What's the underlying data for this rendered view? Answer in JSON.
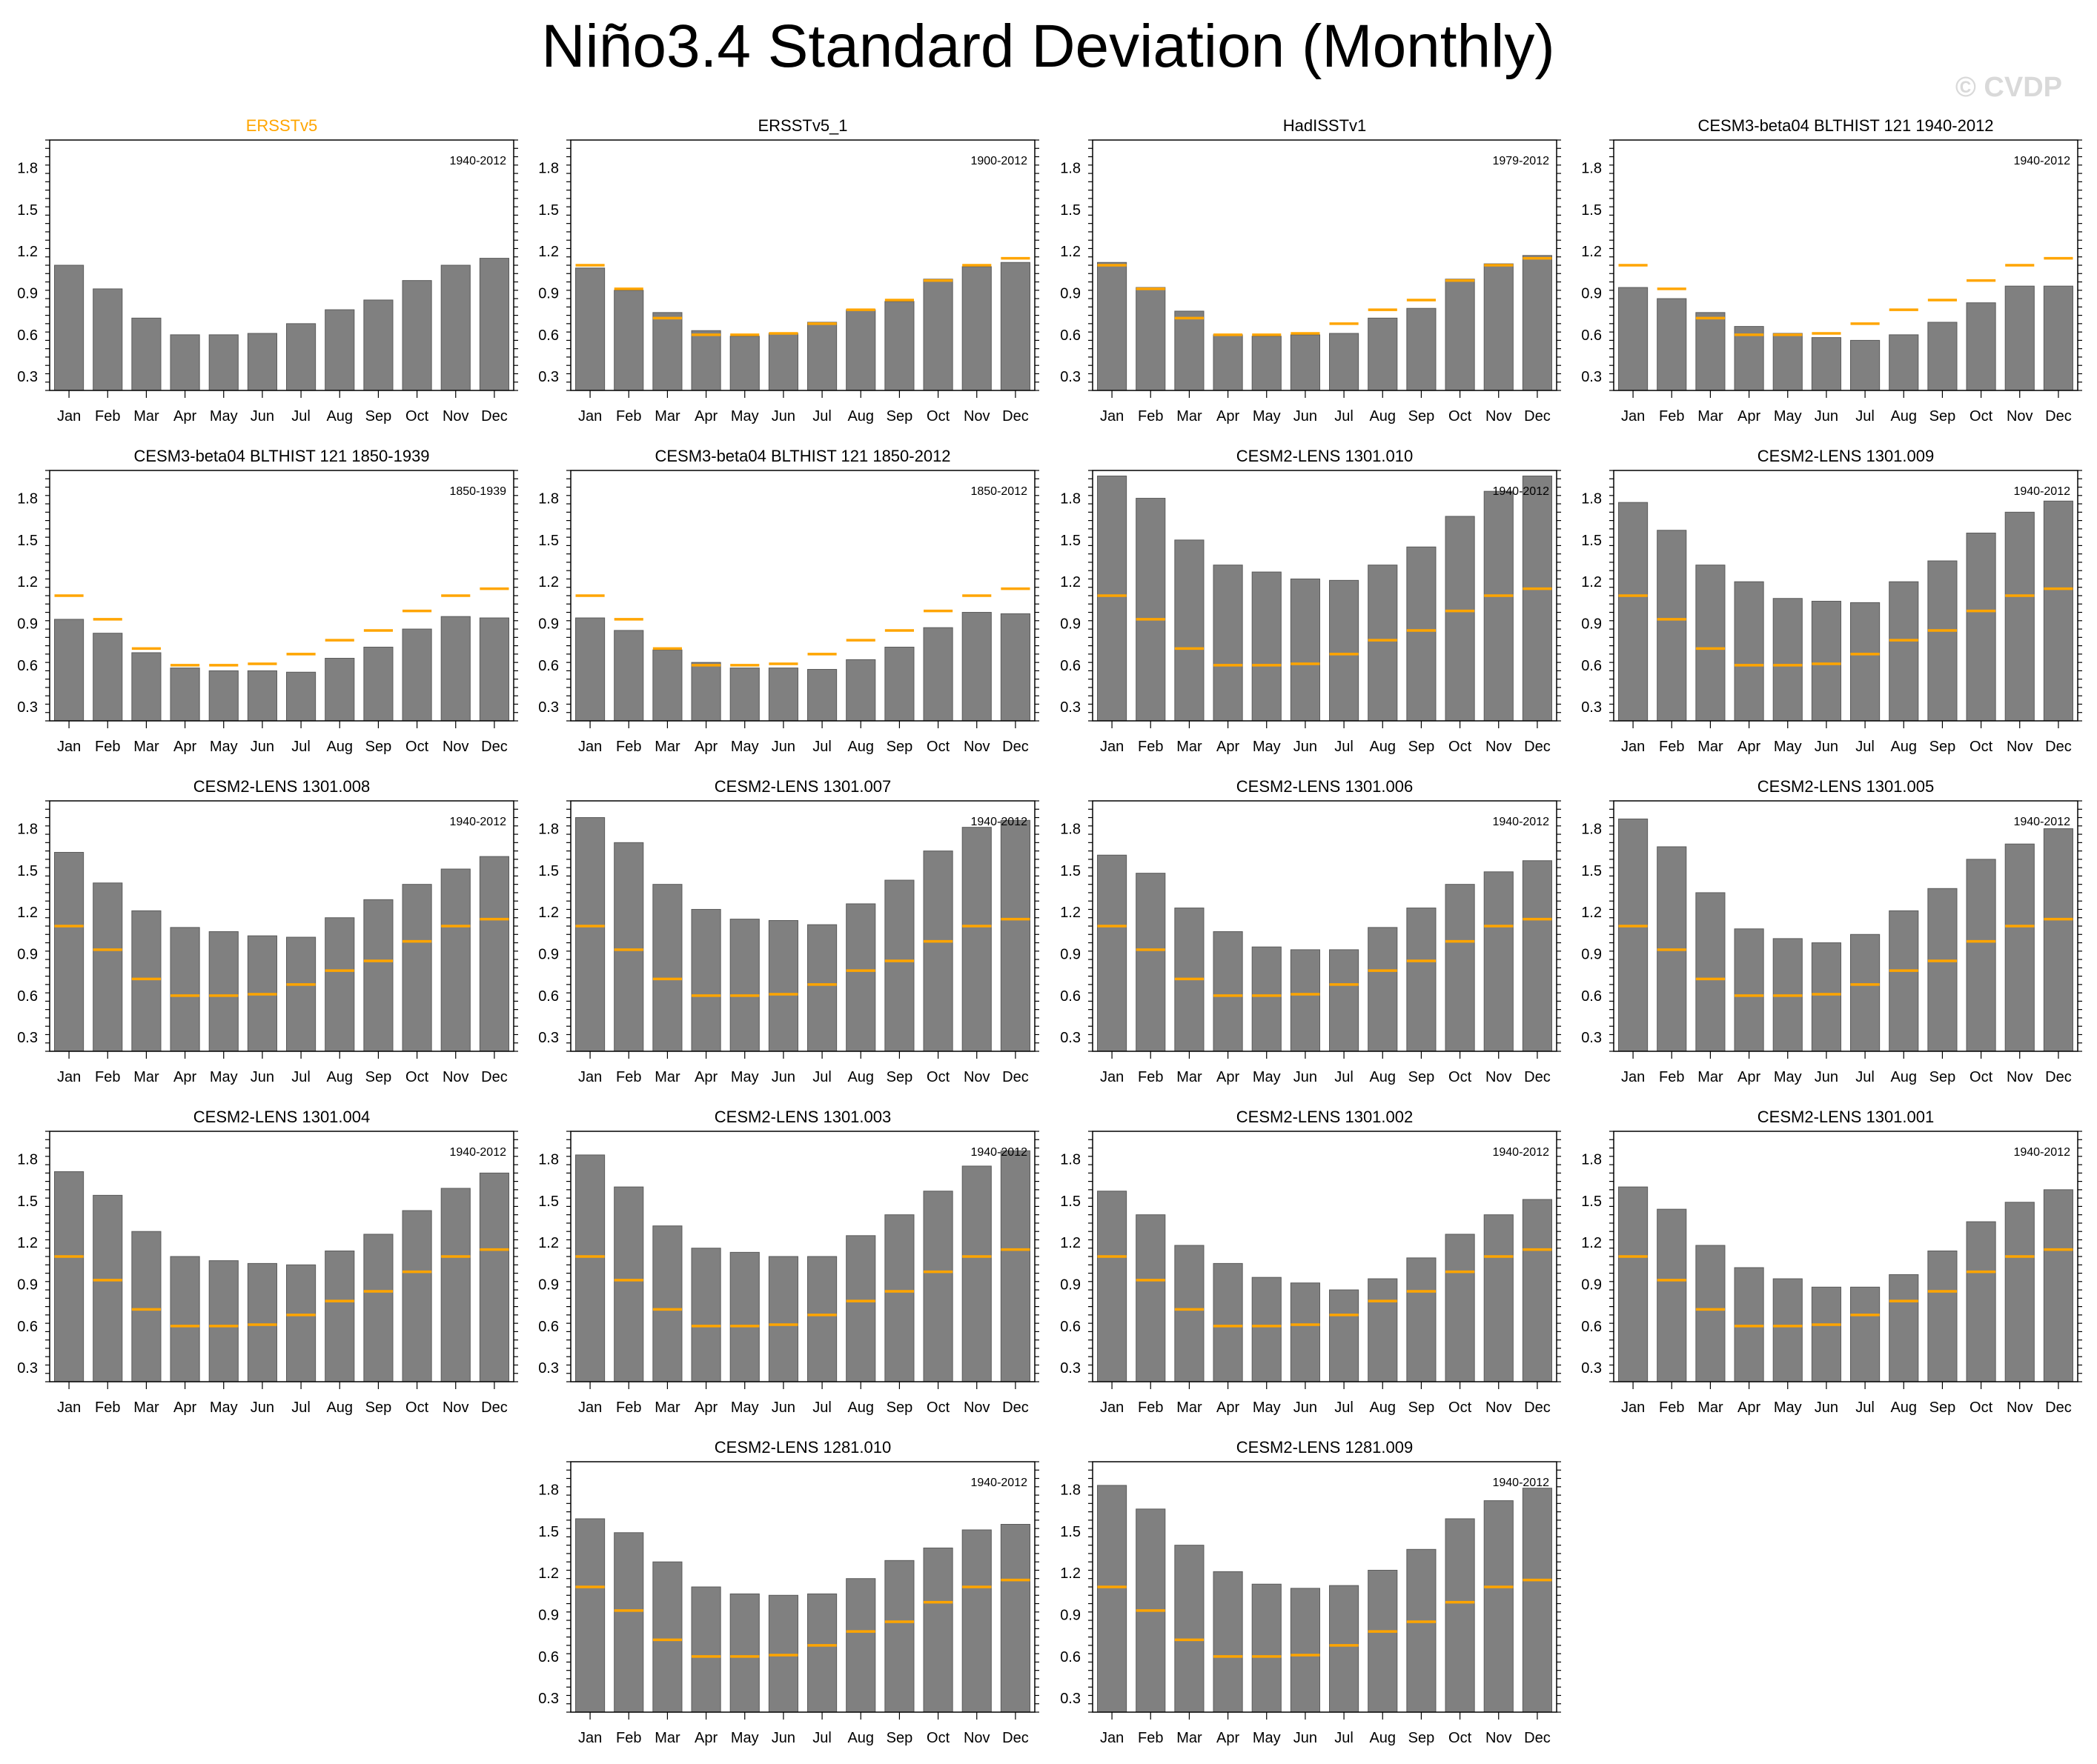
{
  "figure": {
    "title": "Niño3.4 Standard Deviation (Monthly)",
    "watermark": "© CVDP"
  },
  "colors": {
    "bar": "#808080",
    "reference": "#ffa500",
    "title_highlight": "#ffa500",
    "axis": "#000000",
    "watermark": "#d9d9d9"
  },
  "chart_data": [
    {
      "type": "bar",
      "title": "ERSSTv5",
      "period": "1940-2012",
      "is_reference": true,
      "categories": [
        "Jan",
        "Feb",
        "Mar",
        "Apr",
        "May",
        "Jun",
        "Jul",
        "Aug",
        "Sep",
        "Oct",
        "Nov",
        "Dec"
      ],
      "values": [
        1.1,
        0.93,
        0.72,
        0.6,
        0.6,
        0.61,
        0.68,
        0.78,
        0.85,
        0.99,
        1.1,
        1.15
      ],
      "reference": [],
      "ylim": [
        0.2,
        2.0
      ],
      "yticks": [
        "0.3",
        "0.6",
        "0.9",
        "1.2",
        "1.5",
        "1.8"
      ]
    },
    {
      "type": "bar",
      "title": "ERSSTv5_1",
      "period": "1900-2012",
      "categories": [
        "Jan",
        "Feb",
        "Mar",
        "Apr",
        "May",
        "Jun",
        "Jul",
        "Aug",
        "Sep",
        "Oct",
        "Nov",
        "Dec"
      ],
      "values": [
        1.08,
        0.92,
        0.76,
        0.63,
        0.59,
        0.61,
        0.69,
        0.78,
        0.84,
        1.0,
        1.09,
        1.12
      ],
      "reference": [
        1.1,
        0.93,
        0.72,
        0.6,
        0.6,
        0.61,
        0.68,
        0.78,
        0.85,
        0.99,
        1.1,
        1.15
      ],
      "ylim": [
        0.2,
        2.0
      ],
      "yticks": [
        "0.3",
        "0.6",
        "0.9",
        "1.2",
        "1.5",
        "1.8"
      ]
    },
    {
      "type": "bar",
      "title": "HadISSTv1",
      "period": "1979-2012",
      "categories": [
        "Jan",
        "Feb",
        "Mar",
        "Apr",
        "May",
        "Jun",
        "Jul",
        "Aug",
        "Sep",
        "Oct",
        "Nov",
        "Dec"
      ],
      "values": [
        1.12,
        0.94,
        0.77,
        0.6,
        0.59,
        0.6,
        0.61,
        0.72,
        0.79,
        1.0,
        1.11,
        1.17
      ],
      "reference": [
        1.1,
        0.93,
        0.72,
        0.6,
        0.6,
        0.61,
        0.68,
        0.78,
        0.85,
        0.99,
        1.1,
        1.15
      ],
      "ylim": [
        0.2,
        2.0
      ],
      "yticks": [
        "0.3",
        "0.6",
        "0.9",
        "1.2",
        "1.5",
        "1.8"
      ]
    },
    {
      "type": "bar",
      "title": "CESM3-beta04 BLTHIST 121 1940-2012",
      "period": "1940-2012",
      "categories": [
        "Jan",
        "Feb",
        "Mar",
        "Apr",
        "May",
        "Jun",
        "Jul",
        "Aug",
        "Sep",
        "Oct",
        "Nov",
        "Dec"
      ],
      "values": [
        0.94,
        0.86,
        0.76,
        0.66,
        0.61,
        0.58,
        0.56,
        0.6,
        0.69,
        0.83,
        0.95,
        0.95
      ],
      "reference": [
        1.1,
        0.93,
        0.72,
        0.6,
        0.6,
        0.61,
        0.68,
        0.78,
        0.85,
        0.99,
        1.1,
        1.15
      ],
      "ylim": [
        0.2,
        2.0
      ],
      "yticks": [
        "0.3",
        "0.6",
        "0.9",
        "1.2",
        "1.5",
        "1.8"
      ]
    },
    {
      "type": "bar",
      "title": "CESM3-beta04 BLTHIST 121 1850-1939",
      "period": "1850-1939",
      "categories": [
        "Jan",
        "Feb",
        "Mar",
        "Apr",
        "May",
        "Jun",
        "Jul",
        "Aug",
        "Sep",
        "Oct",
        "Nov",
        "Dec"
      ],
      "values": [
        0.93,
        0.83,
        0.69,
        0.58,
        0.56,
        0.56,
        0.55,
        0.65,
        0.73,
        0.86,
        0.95,
        0.94
      ],
      "reference": [
        1.1,
        0.93,
        0.72,
        0.6,
        0.6,
        0.61,
        0.68,
        0.78,
        0.85,
        0.99,
        1.1,
        1.15
      ],
      "ylim": [
        0.2,
        2.0
      ],
      "yticks": [
        "0.3",
        "0.6",
        "0.9",
        "1.2",
        "1.5",
        "1.8"
      ]
    },
    {
      "type": "bar",
      "title": "CESM3-beta04 BLTHIST 121 1850-2012",
      "period": "1850-2012",
      "categories": [
        "Jan",
        "Feb",
        "Mar",
        "Apr",
        "May",
        "Jun",
        "Jul",
        "Aug",
        "Sep",
        "Oct",
        "Nov",
        "Dec"
      ],
      "values": [
        0.94,
        0.85,
        0.71,
        0.62,
        0.58,
        0.58,
        0.57,
        0.64,
        0.73,
        0.87,
        0.98,
        0.97
      ],
      "reference": [
        1.1,
        0.93,
        0.72,
        0.6,
        0.6,
        0.61,
        0.68,
        0.78,
        0.85,
        0.99,
        1.1,
        1.15
      ],
      "ylim": [
        0.2,
        2.0
      ],
      "yticks": [
        "0.3",
        "0.6",
        "0.9",
        "1.2",
        "1.5",
        "1.8"
      ]
    },
    {
      "type": "bar",
      "title": "CESM2-LENS 1301.010",
      "period": "1940-2012",
      "categories": [
        "Jan",
        "Feb",
        "Mar",
        "Apr",
        "May",
        "Jun",
        "Jul",
        "Aug",
        "Sep",
        "Oct",
        "Nov",
        "Dec"
      ],
      "values": [
        1.96,
        1.8,
        1.5,
        1.32,
        1.27,
        1.22,
        1.21,
        1.32,
        1.45,
        1.67,
        1.85,
        1.96
      ],
      "reference": [
        1.1,
        0.93,
        0.72,
        0.6,
        0.6,
        0.61,
        0.68,
        0.78,
        0.85,
        0.99,
        1.1,
        1.15
      ],
      "ylim": [
        0.2,
        2.0
      ],
      "yticks": [
        "0.3",
        "0.6",
        "0.9",
        "1.2",
        "1.5",
        "1.8"
      ]
    },
    {
      "type": "bar",
      "title": "CESM2-LENS 1301.009",
      "period": "1940-2012",
      "categories": [
        "Jan",
        "Feb",
        "Mar",
        "Apr",
        "May",
        "Jun",
        "Jul",
        "Aug",
        "Sep",
        "Oct",
        "Nov",
        "Dec"
      ],
      "values": [
        1.77,
        1.57,
        1.32,
        1.2,
        1.08,
        1.06,
        1.05,
        1.2,
        1.35,
        1.55,
        1.7,
        1.78
      ],
      "reference": [
        1.1,
        0.93,
        0.72,
        0.6,
        0.6,
        0.61,
        0.68,
        0.78,
        0.85,
        0.99,
        1.1,
        1.15
      ],
      "ylim": [
        0.2,
        2.0
      ],
      "yticks": [
        "0.3",
        "0.6",
        "0.9",
        "1.2",
        "1.5",
        "1.8"
      ]
    },
    {
      "type": "bar",
      "title": "CESM2-LENS 1301.008",
      "period": "1940-2012",
      "categories": [
        "Jan",
        "Feb",
        "Mar",
        "Apr",
        "May",
        "Jun",
        "Jul",
        "Aug",
        "Sep",
        "Oct",
        "Nov",
        "Dec"
      ],
      "values": [
        1.63,
        1.41,
        1.21,
        1.09,
        1.06,
        1.03,
        1.02,
        1.16,
        1.29,
        1.4,
        1.51,
        1.6
      ],
      "reference": [
        1.1,
        0.93,
        0.72,
        0.6,
        0.6,
        0.61,
        0.68,
        0.78,
        0.85,
        0.99,
        1.1,
        1.15
      ],
      "ylim": [
        0.2,
        2.0
      ],
      "yticks": [
        "0.3",
        "0.6",
        "0.9",
        "1.2",
        "1.5",
        "1.8"
      ]
    },
    {
      "type": "bar",
      "title": "CESM2-LENS 1301.007",
      "period": "1940-2012",
      "categories": [
        "Jan",
        "Feb",
        "Mar",
        "Apr",
        "May",
        "Jun",
        "Jul",
        "Aug",
        "Sep",
        "Oct",
        "Nov",
        "Dec"
      ],
      "values": [
        1.88,
        1.7,
        1.4,
        1.22,
        1.15,
        1.14,
        1.11,
        1.26,
        1.43,
        1.64,
        1.81,
        1.86
      ],
      "reference": [
        1.1,
        0.93,
        0.72,
        0.6,
        0.6,
        0.61,
        0.68,
        0.78,
        0.85,
        0.99,
        1.1,
        1.15
      ],
      "ylim": [
        0.2,
        2.0
      ],
      "yticks": [
        "0.3",
        "0.6",
        "0.9",
        "1.2",
        "1.5",
        "1.8"
      ]
    },
    {
      "type": "bar",
      "title": "CESM2-LENS 1301.006",
      "period": "1940-2012",
      "categories": [
        "Jan",
        "Feb",
        "Mar",
        "Apr",
        "May",
        "Jun",
        "Jul",
        "Aug",
        "Sep",
        "Oct",
        "Nov",
        "Dec"
      ],
      "values": [
        1.61,
        1.48,
        1.23,
        1.06,
        0.95,
        0.93,
        0.93,
        1.09,
        1.23,
        1.4,
        1.49,
        1.57
      ],
      "reference": [
        1.1,
        0.93,
        0.72,
        0.6,
        0.6,
        0.61,
        0.68,
        0.78,
        0.85,
        0.99,
        1.1,
        1.15
      ],
      "ylim": [
        0.2,
        2.0
      ],
      "yticks": [
        "0.3",
        "0.6",
        "0.9",
        "1.2",
        "1.5",
        "1.8"
      ]
    },
    {
      "type": "bar",
      "title": "CESM2-LENS 1301.005",
      "period": "1940-2012",
      "categories": [
        "Jan",
        "Feb",
        "Mar",
        "Apr",
        "May",
        "Jun",
        "Jul",
        "Aug",
        "Sep",
        "Oct",
        "Nov",
        "Dec"
      ],
      "values": [
        1.87,
        1.67,
        1.34,
        1.08,
        1.01,
        0.98,
        1.04,
        1.21,
        1.37,
        1.58,
        1.69,
        1.8
      ],
      "reference": [
        1.1,
        0.93,
        0.72,
        0.6,
        0.6,
        0.61,
        0.68,
        0.78,
        0.85,
        0.99,
        1.1,
        1.15
      ],
      "ylim": [
        0.2,
        2.0
      ],
      "yticks": [
        "0.3",
        "0.6",
        "0.9",
        "1.2",
        "1.5",
        "1.8"
      ]
    },
    {
      "type": "bar",
      "title": "CESM2-LENS 1301.004",
      "period": "1940-2012",
      "categories": [
        "Jan",
        "Feb",
        "Mar",
        "Apr",
        "May",
        "Jun",
        "Jul",
        "Aug",
        "Sep",
        "Oct",
        "Nov",
        "Dec"
      ],
      "values": [
        1.71,
        1.54,
        1.28,
        1.1,
        1.07,
        1.05,
        1.04,
        1.14,
        1.26,
        1.43,
        1.59,
        1.7
      ],
      "reference": [
        1.1,
        0.93,
        0.72,
        0.6,
        0.6,
        0.61,
        0.68,
        0.78,
        0.85,
        0.99,
        1.1,
        1.15
      ],
      "ylim": [
        0.2,
        2.0
      ],
      "yticks": [
        "0.3",
        "0.6",
        "0.9",
        "1.2",
        "1.5",
        "1.8"
      ]
    },
    {
      "type": "bar",
      "title": "CESM2-LENS 1301.003",
      "period": "1940-2012",
      "categories": [
        "Jan",
        "Feb",
        "Mar",
        "Apr",
        "May",
        "Jun",
        "Jul",
        "Aug",
        "Sep",
        "Oct",
        "Nov",
        "Dec"
      ],
      "values": [
        1.83,
        1.6,
        1.32,
        1.16,
        1.13,
        1.1,
        1.1,
        1.25,
        1.4,
        1.57,
        1.75,
        1.86
      ],
      "reference": [
        1.1,
        0.93,
        0.72,
        0.6,
        0.6,
        0.61,
        0.68,
        0.78,
        0.85,
        0.99,
        1.1,
        1.15
      ],
      "ylim": [
        0.2,
        2.0
      ],
      "yticks": [
        "0.3",
        "0.6",
        "0.9",
        "1.2",
        "1.5",
        "1.8"
      ]
    },
    {
      "type": "bar",
      "title": "CESM2-LENS 1301.002",
      "period": "1940-2012",
      "categories": [
        "Jan",
        "Feb",
        "Mar",
        "Apr",
        "May",
        "Jun",
        "Jul",
        "Aug",
        "Sep",
        "Oct",
        "Nov",
        "Dec"
      ],
      "values": [
        1.57,
        1.4,
        1.18,
        1.05,
        0.95,
        0.91,
        0.86,
        0.94,
        1.09,
        1.26,
        1.4,
        1.51
      ],
      "reference": [
        1.1,
        0.93,
        0.72,
        0.6,
        0.6,
        0.61,
        0.68,
        0.78,
        0.85,
        0.99,
        1.1,
        1.15
      ],
      "ylim": [
        0.2,
        2.0
      ],
      "yticks": [
        "0.3",
        "0.6",
        "0.9",
        "1.2",
        "1.5",
        "1.8"
      ]
    },
    {
      "type": "bar",
      "title": "CESM2-LENS 1301.001",
      "period": "1940-2012",
      "categories": [
        "Jan",
        "Feb",
        "Mar",
        "Apr",
        "May",
        "Jun",
        "Jul",
        "Aug",
        "Sep",
        "Oct",
        "Nov",
        "Dec"
      ],
      "values": [
        1.6,
        1.44,
        1.18,
        1.02,
        0.94,
        0.88,
        0.88,
        0.97,
        1.14,
        1.35,
        1.49,
        1.58
      ],
      "reference": [
        1.1,
        0.93,
        0.72,
        0.6,
        0.6,
        0.61,
        0.68,
        0.78,
        0.85,
        0.99,
        1.1,
        1.15
      ],
      "ylim": [
        0.2,
        2.0
      ],
      "yticks": [
        "0.3",
        "0.6",
        "0.9",
        "1.2",
        "1.5",
        "1.8"
      ]
    },
    {
      "type": "bar",
      "title": "CESM2-LENS 1281.010",
      "period": "1940-2012",
      "categories": [
        "Jan",
        "Feb",
        "Mar",
        "Apr",
        "May",
        "Jun",
        "Jul",
        "Aug",
        "Sep",
        "Oct",
        "Nov",
        "Dec"
      ],
      "values": [
        1.59,
        1.49,
        1.28,
        1.1,
        1.05,
        1.04,
        1.05,
        1.16,
        1.29,
        1.38,
        1.51,
        1.55
      ],
      "reference": [
        1.1,
        0.93,
        0.72,
        0.6,
        0.6,
        0.61,
        0.68,
        0.78,
        0.85,
        0.99,
        1.1,
        1.15
      ],
      "ylim": [
        0.2,
        2.0
      ],
      "yticks": [
        "0.3",
        "0.6",
        "0.9",
        "1.2",
        "1.5",
        "1.8"
      ]
    },
    {
      "type": "bar",
      "title": "CESM2-LENS 1281.009",
      "period": "1940-2012",
      "categories": [
        "Jan",
        "Feb",
        "Mar",
        "Apr",
        "May",
        "Jun",
        "Jul",
        "Aug",
        "Sep",
        "Oct",
        "Nov",
        "Dec"
      ],
      "values": [
        1.83,
        1.66,
        1.4,
        1.21,
        1.12,
        1.09,
        1.11,
        1.22,
        1.37,
        1.59,
        1.72,
        1.81
      ],
      "reference": [
        1.1,
        0.93,
        0.72,
        0.6,
        0.6,
        0.61,
        0.68,
        0.78,
        0.85,
        0.99,
        1.1,
        1.15
      ],
      "ylim": [
        0.2,
        2.0
      ],
      "yticks": [
        "0.3",
        "0.6",
        "0.9",
        "1.2",
        "1.5",
        "1.8"
      ]
    }
  ]
}
